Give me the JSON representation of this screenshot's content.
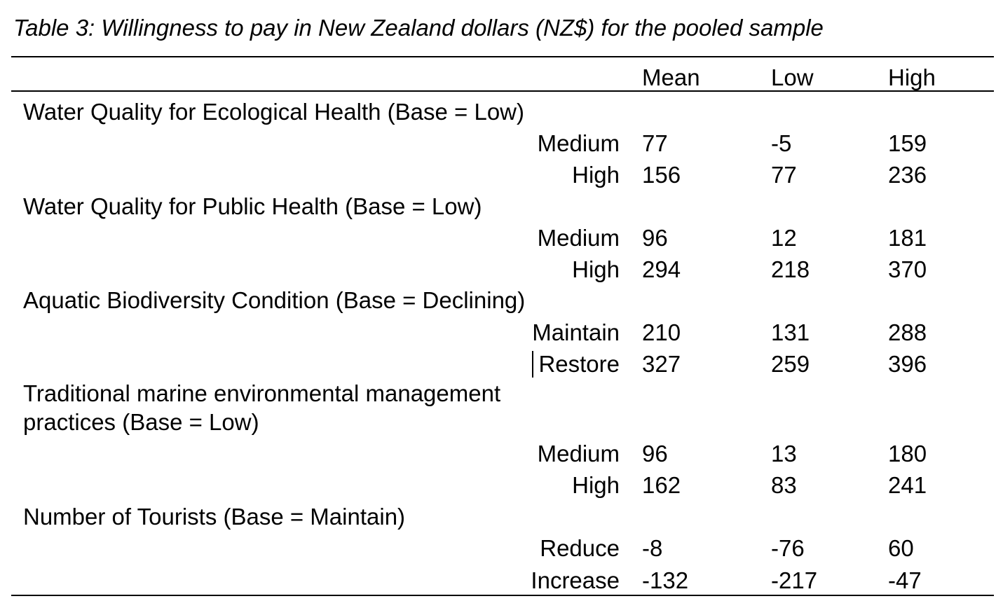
{
  "caption": "Table 3: Willingness to pay in New Zealand dollars (NZ$) for the pooled sample",
  "columns": [
    "Mean",
    "Low",
    "High"
  ],
  "groups": [
    {
      "title": "Water Quality for Ecological Health (Base = Low)",
      "rows": [
        {
          "label": "Medium",
          "mean": "77",
          "low": "-5",
          "high": "159"
        },
        {
          "label": "High",
          "mean": "156",
          "low": "77",
          "high": "236"
        }
      ]
    },
    {
      "title": "Water Quality for Public Health (Base = Low)",
      "rows": [
        {
          "label": "Medium",
          "mean": "96",
          "low": "12",
          "high": "181"
        },
        {
          "label": "High",
          "mean": "294",
          "low": "218",
          "high": "370"
        }
      ]
    },
    {
      "title": "Aquatic Biodiversity Condition (Base = Declining)",
      "rows": [
        {
          "label": "Maintain",
          "mean": "210",
          "low": "131",
          "high": "288"
        },
        {
          "label": "Restore",
          "mean": "327",
          "low": "259",
          "high": "396"
        }
      ]
    },
    {
      "title_line1": "Traditional marine environmental management",
      "title_line2": "practices (Base = Low)",
      "rows": [
        {
          "label": "Medium",
          "mean": "96",
          "low": "13",
          "high": "180"
        },
        {
          "label": "High",
          "mean": "162",
          "low": "83",
          "high": "241"
        }
      ]
    },
    {
      "title": "Number of Tourists (Base = Maintain)",
      "rows": [
        {
          "label": "Reduce",
          "mean": "-8",
          "low": "-76",
          "high": "60"
        },
        {
          "label": "Increase",
          "mean": "-132",
          "low": "-217",
          "high": "-47"
        }
      ]
    }
  ]
}
